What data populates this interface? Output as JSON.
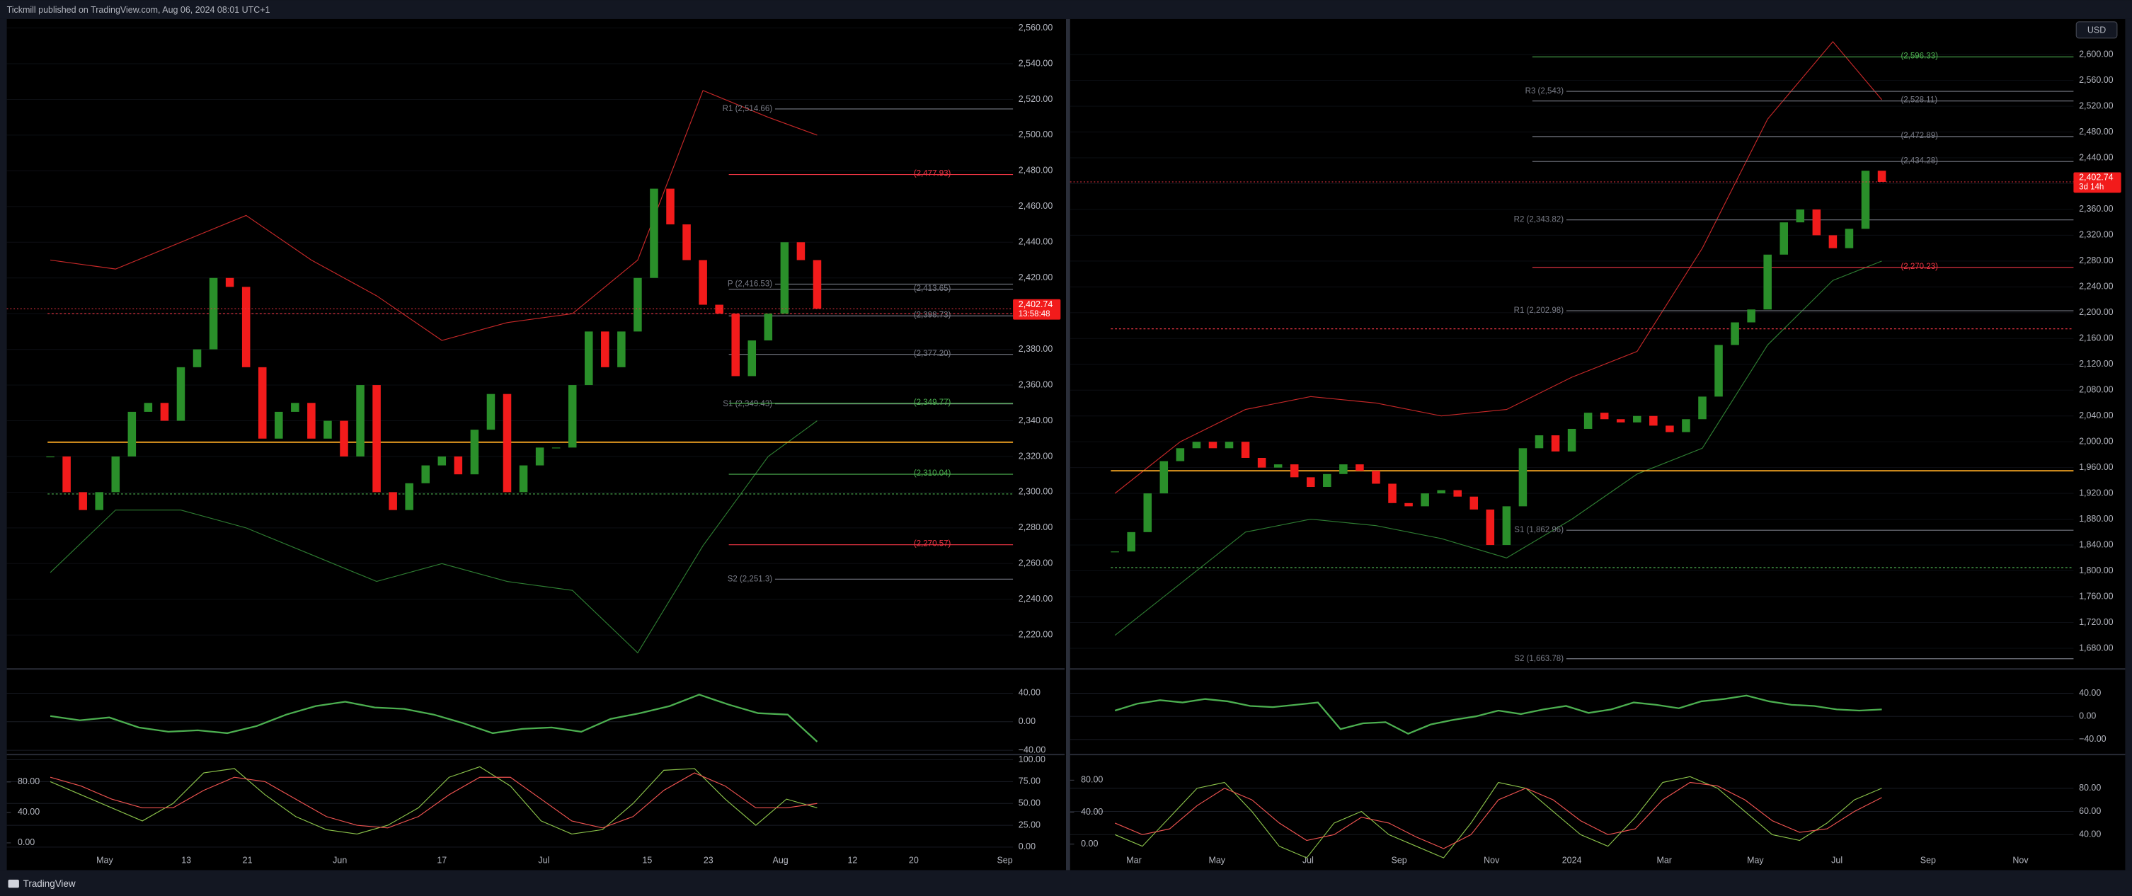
{
  "header": {
    "text": "Tickmill published on TradingView.com, Aug 06, 2024 08:01 UTC+1"
  },
  "footer": {
    "brand": "TradingView"
  },
  "currency": "USD",
  "chart_data": [
    {
      "type": "candlestick",
      "color_up": "#2a8f2a",
      "color_down": "#f21b1b",
      "closes": [
        2320,
        2300,
        2290,
        2300,
        2320,
        2345,
        2350,
        2340,
        2370,
        2380,
        2420,
        2415,
        2370,
        2330,
        2345,
        2350,
        2330,
        2340,
        2320,
        2360,
        2300,
        2290,
        2305,
        2315,
        2320,
        2310,
        2335,
        2355,
        2300,
        2315,
        2325,
        2325,
        2360,
        2390,
        2370,
        2390,
        2420,
        2470,
        2450,
        2430,
        2405,
        2400,
        2365,
        2385,
        2400,
        2440,
        2430,
        2402.74
      ],
      "ylim": [
        2201,
        2565
      ],
      "yticks": [
        {
          "value": 2220,
          "label": "2,220.00"
        },
        {
          "value": 2240,
          "label": "2,240.00"
        },
        {
          "value": 2260,
          "label": "2,260.00"
        },
        {
          "value": 2280,
          "label": "2,280.00"
        },
        {
          "value": 2300,
          "label": "2,300.00"
        },
        {
          "value": 2320,
          "label": "2,320.00"
        },
        {
          "value": 2340,
          "label": "2,340.00"
        },
        {
          "value": 2360,
          "label": "2,360.00"
        },
        {
          "value": 2380,
          "label": "2,380.00"
        },
        {
          "value": 2400,
          "label": "2,400.00"
        },
        {
          "value": 2420,
          "label": "2,420.00"
        },
        {
          "value": 2440,
          "label": "2,440.00"
        },
        {
          "value": 2460,
          "label": "2,460.00"
        },
        {
          "value": 2480,
          "label": "2,480.00"
        },
        {
          "value": 2500,
          "label": "2,500.00"
        },
        {
          "value": 2520,
          "label": "2,520.00"
        },
        {
          "value": 2540,
          "label": "2,540.00"
        },
        {
          "value": 2560,
          "label": "2,560.00"
        }
      ],
      "xticks": [
        "May",
        "13",
        "21",
        "Jun",
        "17",
        "Jul",
        "15",
        "23",
        "Aug",
        "12",
        "20",
        "Sep"
      ],
      "last_price": {
        "value": 2402.74,
        "label": "2,402.74"
      },
      "countdown": "13:58:48",
      "levels": [
        {
          "label": "R1 (2,514.66)",
          "value": 2514.66,
          "color": "#787b86"
        },
        {
          "label": "(2,477.93)",
          "value": 2477.93,
          "color": "#f23645"
        },
        {
          "label": "P (2,416.53)",
          "value": 2416.53,
          "color": "#787b86"
        },
        {
          "label": "(2,413.65)",
          "value": 2413.65,
          "color": "#787b86"
        },
        {
          "label": "(2,398.73)",
          "value": 2398.73,
          "color": "#787b86"
        },
        {
          "label": "(2,377.20)",
          "value": 2377.2,
          "color": "#787b86"
        },
        {
          "label": "S1 (2,349.43)",
          "value": 2349.43,
          "color": "#787b86"
        },
        {
          "label": "(2,349.77)",
          "value": 2349.77,
          "color": "#4caf50"
        },
        {
          "label": "(2,310.04)",
          "value": 2310.04,
          "color": "#4caf50"
        },
        {
          "label": "(2,270.57)",
          "value": 2270.57,
          "color": "#f23645"
        },
        {
          "label": "S2 (2,251.3)",
          "value": 2251.3,
          "color": "#787b86"
        }
      ],
      "horizontal_lines": [
        {
          "value": 2328,
          "color": "#f5a623",
          "dash": false
        },
        {
          "value": 2299,
          "color": "#4caf50",
          "dash": true
        },
        {
          "value": 2400,
          "color": "#f23645",
          "dash": true
        }
      ],
      "bands": {
        "x": [
          0,
          4,
          8,
          12,
          16,
          20,
          24,
          28,
          32,
          36,
          40,
          44,
          47
        ],
        "upper": [
          2430,
          2425,
          2440,
          2455,
          2430,
          2410,
          2385,
          2395,
          2400,
          2430,
          2525,
          2510,
          2500
        ],
        "lower": [
          2255,
          2290,
          2290,
          2280,
          2265,
          2250,
          2260,
          2250,
          2245,
          2210,
          2270,
          2320,
          2340
        ],
        "upper_color": "#c62828",
        "lower_color": "#2e7d32"
      },
      "osc": {
        "ylim": [
          -46,
          74
        ],
        "yticks": [
          {
            "value": 40,
            "label": "40.00"
          },
          {
            "value": 0,
            "label": "0.00"
          },
          {
            "value": -40,
            "label": "−40.00"
          }
        ],
        "values": [
          8,
          2,
          6,
          -8,
          -14,
          -12,
          -16,
          -6,
          10,
          22,
          28,
          20,
          18,
          10,
          -2,
          -16,
          -10,
          -8,
          -14,
          4,
          12,
          22,
          38,
          24,
          12,
          10,
          -28
        ],
        "color": "#4caf50"
      },
      "stoch": {
        "ylim": [
          -3,
          106
        ],
        "yticks": [
          {
            "value": 100,
            "label": "100.00"
          },
          {
            "value": 75,
            "label": "75.00"
          },
          {
            "value": 50,
            "label": "50.00"
          },
          {
            "value": 25,
            "label": "25.00"
          },
          {
            "value": 0,
            "label": "0.00"
          }
        ],
        "y2lim": [
          -9,
          116
        ],
        "y2ticks": [
          {
            "value": 80,
            "label": "80.00"
          },
          {
            "value": 40,
            "label": "40.00"
          },
          {
            "value": 0,
            "label": "0.00"
          }
        ],
        "series": [
          {
            "color": "#8bc34a",
            "values": [
              75,
              60,
              45,
              30,
              50,
              85,
              90,
              60,
              35,
              20,
              15,
              25,
              45,
              80,
              92,
              70,
              30,
              15,
              20,
              50,
              88,
              90,
              55,
              25,
              55,
              45
            ]
          },
          {
            "color": "#ef5350",
            "values": [
              80,
              70,
              55,
              45,
              45,
              65,
              80,
              75,
              55,
              35,
              25,
              22,
              35,
              60,
              80,
              80,
              55,
              30,
              22,
              35,
              65,
              85,
              70,
              45,
              45,
              50
            ]
          }
        ]
      }
    },
    {
      "type": "candlestick",
      "color_up": "#2a8f2a",
      "color_down": "#f21b1b",
      "closes": [
        1830,
        1860,
        1920,
        1970,
        1990,
        2000,
        1990,
        2000,
        1975,
        1960,
        1965,
        1945,
        1930,
        1950,
        1965,
        1955,
        1935,
        1905,
        1900,
        1920,
        1925,
        1915,
        1895,
        1840,
        1900,
        1990,
        2010,
        1985,
        2020,
        2045,
        2035,
        2030,
        2040,
        2025,
        2015,
        2035,
        2070,
        2150,
        2185,
        2205,
        2290,
        2340,
        2360,
        2320,
        2300,
        2330,
        2420,
        2402.74
      ],
      "ylim": [
        1648,
        2655
      ],
      "yticks": [
        {
          "value": 1680,
          "label": "1,680.00"
        },
        {
          "value": 1720,
          "label": "1,720.00"
        },
        {
          "value": 1760,
          "label": "1,760.00"
        },
        {
          "value": 1800,
          "label": "1,800.00"
        },
        {
          "value": 1840,
          "label": "1,840.00"
        },
        {
          "value": 1880,
          "label": "1,880.00"
        },
        {
          "value": 1920,
          "label": "1,920.00"
        },
        {
          "value": 1960,
          "label": "1,960.00"
        },
        {
          "value": 2000,
          "label": "2,000.00"
        },
        {
          "value": 2040,
          "label": "2,040.00"
        },
        {
          "value": 2080,
          "label": "2,080.00"
        },
        {
          "value": 2120,
          "label": "2,120.00"
        },
        {
          "value": 2160,
          "label": "2,160.00"
        },
        {
          "value": 2200,
          "label": "2,200.00"
        },
        {
          "value": 2240,
          "label": "2,240.00"
        },
        {
          "value": 2280,
          "label": "2,280.00"
        },
        {
          "value": 2320,
          "label": "2,320.00"
        },
        {
          "value": 2360,
          "label": "2,360.00"
        },
        {
          "value": 2400,
          "label": "2,400.00"
        },
        {
          "value": 2440,
          "label": "2,440.00"
        },
        {
          "value": 2480,
          "label": "2,480.00"
        },
        {
          "value": 2520,
          "label": "2,520.00"
        },
        {
          "value": 2560,
          "label": "2,560.00"
        },
        {
          "value": 2600,
          "label": "2,600.00"
        }
      ],
      "xticks": [
        "Mar",
        "May",
        "Jul",
        "Sep",
        "Nov",
        "2024",
        "Mar",
        "May",
        "Jul",
        "Sep",
        "Nov"
      ],
      "last_price": {
        "value": 2402.74,
        "label": "2,402.74"
      },
      "countdown": "3d 14h",
      "levels": [
        {
          "label": "(2,596.33)",
          "value": 2596.33,
          "color": "#4caf50"
        },
        {
          "label": "R3 (2,543)",
          "value": 2543,
          "color": "#787b86"
        },
        {
          "label": "(2,528.11)",
          "value": 2528.11,
          "color": "#787b86"
        },
        {
          "label": "(2,472.89)",
          "value": 2472.89,
          "color": "#787b86"
        },
        {
          "label": "(2,434.28)",
          "value": 2434.28,
          "color": "#787b86"
        },
        {
          "label": "R2 (2,343.82)",
          "value": 2343.82,
          "color": "#787b86"
        },
        {
          "label": "(2,270.23)",
          "value": 2270.23,
          "color": "#f23645"
        },
        {
          "label": "R1 (2,202.98)",
          "value": 2202.98,
          "color": "#787b86"
        },
        {
          "label": "S1 (1,862.96)",
          "value": 1862.96,
          "color": "#787b86"
        },
        {
          "label": "S2 (1,663.78)",
          "value": 1663.78,
          "color": "#787b86"
        }
      ],
      "horizontal_lines": [
        {
          "value": 1955,
          "color": "#f5a623",
          "dash": false
        },
        {
          "value": 1805,
          "color": "#4caf50",
          "dash": true
        },
        {
          "value": 2175,
          "color": "#f23645",
          "dash": true
        }
      ],
      "bands": {
        "x": [
          0,
          4,
          8,
          12,
          16,
          20,
          24,
          28,
          32,
          36,
          40,
          44,
          47
        ],
        "upper": [
          1920,
          2000,
          2050,
          2070,
          2060,
          2040,
          2050,
          2100,
          2140,
          2300,
          2500,
          2620,
          2530
        ],
        "lower": [
          1700,
          1780,
          1860,
          1880,
          1870,
          1850,
          1820,
          1880,
          1950,
          1990,
          2150,
          2250,
          2280
        ],
        "upper_color": "#c62828",
        "lower_color": "#2e7d32"
      },
      "osc": {
        "ylim": [
          -66,
          82
        ],
        "yticks": [
          {
            "value": 40,
            "label": "40.00"
          },
          {
            "value": 0,
            "label": "0.00"
          },
          {
            "value": -40,
            "label": "−40.00"
          }
        ],
        "values": [
          10,
          22,
          28,
          24,
          30,
          26,
          18,
          16,
          20,
          24,
          -22,
          -12,
          -10,
          -30,
          -14,
          -6,
          0,
          10,
          4,
          12,
          18,
          6,
          12,
          24,
          20,
          14,
          26,
          30,
          36,
          26,
          20,
          18,
          12,
          10,
          12
        ],
        "color": "#4caf50"
      },
      "stoch": {
        "ylim": [
          27,
          109
        ],
        "yticks": [
          {
            "value": 80,
            "label": "80.00"
          },
          {
            "value": 60,
            "label": "60.00"
          },
          {
            "value": 40,
            "label": "40.00"
          }
        ],
        "y2lim": [
          -7,
          112
        ],
        "y2ticks": [
          {
            "value": 80,
            "label": "80.00"
          },
          {
            "value": 40,
            "label": "40.00"
          },
          {
            "value": 0,
            "label": "0.00"
          }
        ],
        "series": [
          {
            "color": "#8bc34a",
            "values": [
              40,
              30,
              55,
              80,
              85,
              60,
              30,
              20,
              50,
              60,
              40,
              30,
              20,
              50,
              85,
              80,
              60,
              40,
              30,
              55,
              85,
              90,
              80,
              60,
              40,
              35,
              50,
              70,
              80
            ]
          },
          {
            "color": "#ef5350",
            "values": [
              50,
              40,
              45,
              65,
              80,
              70,
              50,
              35,
              40,
              55,
              50,
              38,
              28,
              40,
              70,
              80,
              70,
              52,
              40,
              45,
              70,
              85,
              82,
              70,
              52,
              42,
              45,
              60,
              72
            ]
          }
        ]
      }
    }
  ]
}
